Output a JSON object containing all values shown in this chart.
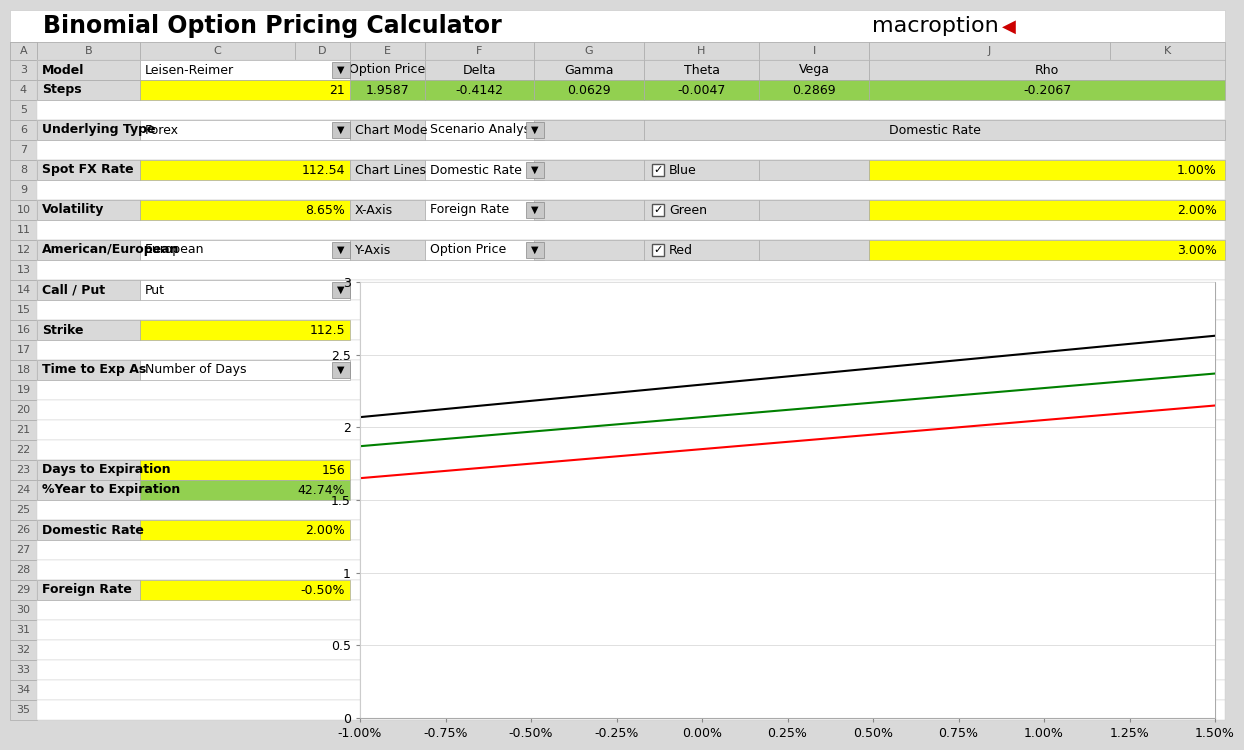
{
  "title": "Binomial Option Pricing Calculator",
  "logo": "macroption",
  "bg_color": "#d9d9d9",
  "white": "#ffffff",
  "yellow": "#ffff00",
  "green_cell": "#92d050",
  "greeks_headers": [
    "Option Price",
    "Delta",
    "Gamma",
    "Theta",
    "Vega",
    "Rho"
  ],
  "greeks_values": [
    "1.9587",
    "-0.4142",
    "0.0629",
    "-0.0047",
    "0.2869",
    "-0.2067"
  ],
  "line_colors": [
    "black",
    "green",
    "red"
  ],
  "line_starts": [
    2.07,
    1.87,
    1.65
  ],
  "line_ends": [
    2.63,
    2.37,
    2.15
  ],
  "chart_xtick_labels": [
    "-1.00%",
    "-0.75%",
    "-0.50%",
    "-0.25%",
    "0.00%",
    "0.25%",
    "0.50%",
    "0.75%",
    "1.00%",
    "1.25%",
    "1.50%"
  ]
}
